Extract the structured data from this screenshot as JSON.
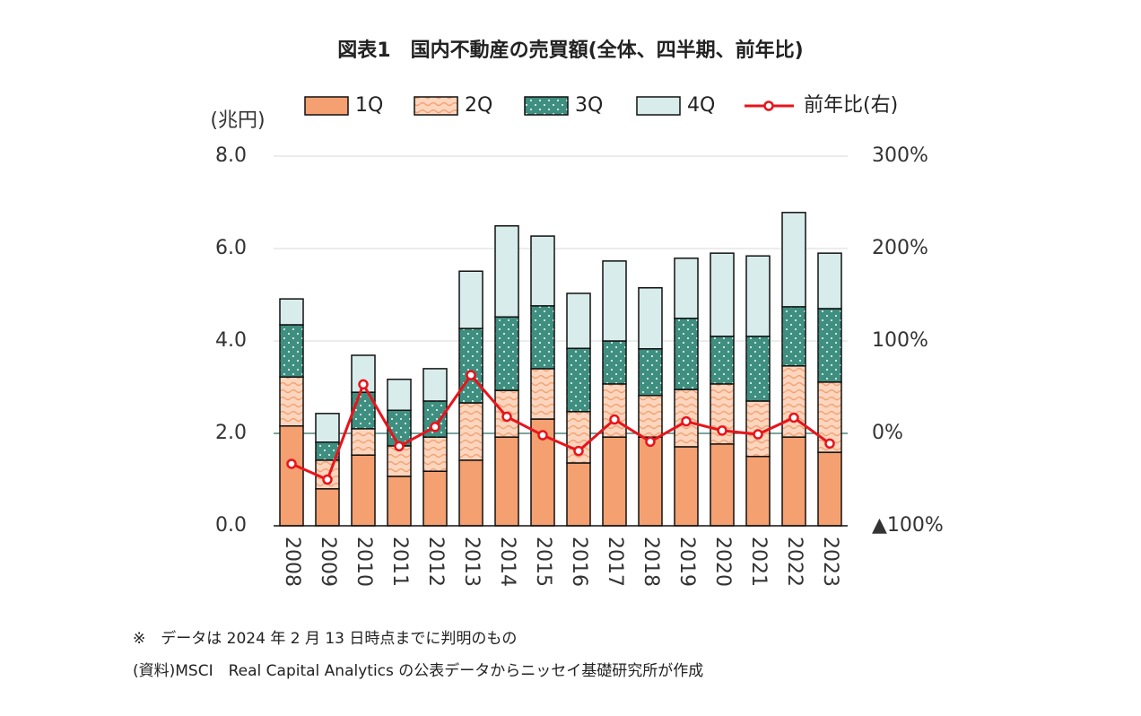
{
  "chart_data": {
    "type": "bar",
    "title": "図表1　国内不動産の売買額(全体、四半期、前年比)",
    "y_label": "(兆円)",
    "categories": [
      "2008",
      "2009",
      "2010",
      "2011",
      "2012",
      "2013",
      "2014",
      "2015",
      "2016",
      "2017",
      "2018",
      "2019",
      "2020",
      "2021",
      "2022",
      "2023"
    ],
    "series": [
      {
        "name": "1Q",
        "color": "#f4a070",
        "values": [
          2.16,
          0.8,
          1.53,
          1.07,
          1.18,
          1.42,
          1.92,
          2.31,
          1.36,
          1.92,
          1.92,
          1.71,
          1.77,
          1.5,
          1.92,
          1.59
        ]
      },
      {
        "name": "2Q",
        "color": "#fbd5bd",
        "values": [
          1.06,
          0.62,
          0.57,
          0.66,
          0.74,
          1.24,
          1.01,
          1.09,
          1.11,
          1.15,
          0.9,
          1.24,
          1.3,
          1.2,
          1.54,
          1.52
        ]
      },
      {
        "name": "3Q",
        "color": "#3f8f80",
        "values": [
          1.13,
          0.39,
          0.79,
          0.77,
          0.78,
          1.61,
          1.59,
          1.36,
          1.37,
          0.93,
          1.01,
          1.54,
          1.03,
          1.4,
          1.28,
          1.59
        ]
      },
      {
        "name": "4Q",
        "color": "#d9ecec",
        "values": [
          0.56,
          0.62,
          0.8,
          0.67,
          0.7,
          1.24,
          1.97,
          1.51,
          1.19,
          1.73,
          1.32,
          1.3,
          1.8,
          1.74,
          2.04,
          1.2
        ]
      },
      {
        "name": "前年比(右)",
        "type": "line",
        "axis": "y2",
        "color": "#e8141b",
        "values": [
          -33,
          -50,
          53,
          -14,
          7,
          63,
          18,
          -2,
          -19,
          15,
          -9,
          13,
          3,
          -1,
          17,
          -11
        ]
      }
    ],
    "ylim": [
      0,
      8
    ],
    "yticks": [
      {
        "value": 0,
        "label": "0.0"
      },
      {
        "value": 2,
        "label": "2.0"
      },
      {
        "value": 4,
        "label": "4.0"
      },
      {
        "value": 6,
        "label": "6.0"
      },
      {
        "value": 8,
        "label": "8.0"
      }
    ],
    "y2lim": [
      -100,
      300
    ],
    "y2ticks": [
      {
        "value": -100,
        "label": "▲100%"
      },
      {
        "value": 0,
        "label": "0%"
      },
      {
        "value": 100,
        "label": "100%"
      },
      {
        "value": 200,
        "label": "200%"
      },
      {
        "value": 300,
        "label": "300%"
      }
    ],
    "grid": true,
    "notes": [
      "※　データは 2024 年 2 月 13 日時点までに判明のもの",
      "(資料)MSCI　Real Capital Analytics の公表データからニッセイ基礎研究所が作成"
    ]
  }
}
